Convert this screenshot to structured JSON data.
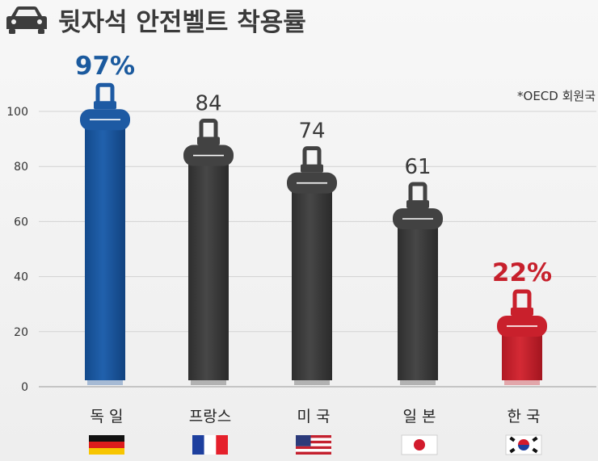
{
  "title": "뒷자석 안전벨트 착용률",
  "icon": "car-icon",
  "chart_data": {
    "type": "bar",
    "title": "뒷자석 안전벨트 착용률",
    "note": "*OECD 회원국",
    "categories": [
      "독 일",
      "프랑스",
      "미 국",
      "일 본",
      "한 국"
    ],
    "values": [
      97,
      84,
      74,
      61,
      22
    ],
    "value_labels": [
      "97%",
      "84",
      "74",
      "61",
      "22%"
    ],
    "flags": [
      "germany-flag",
      "france-flag",
      "usa-flag",
      "japan-flag",
      "korea-flag"
    ],
    "colors": [
      "#1d5aa3",
      "#424242",
      "#424242",
      "#424242",
      "#c9202c"
    ],
    "label_colors": [
      "#1b5a9e",
      "#3a3a3a",
      "#3a3a3a",
      "#3a3a3a",
      "#c7202c"
    ],
    "ylim": [
      0,
      100
    ],
    "yticks": [
      0,
      20,
      40,
      60,
      80,
      100
    ],
    "grid": true,
    "xlabel": "",
    "ylabel": ""
  }
}
